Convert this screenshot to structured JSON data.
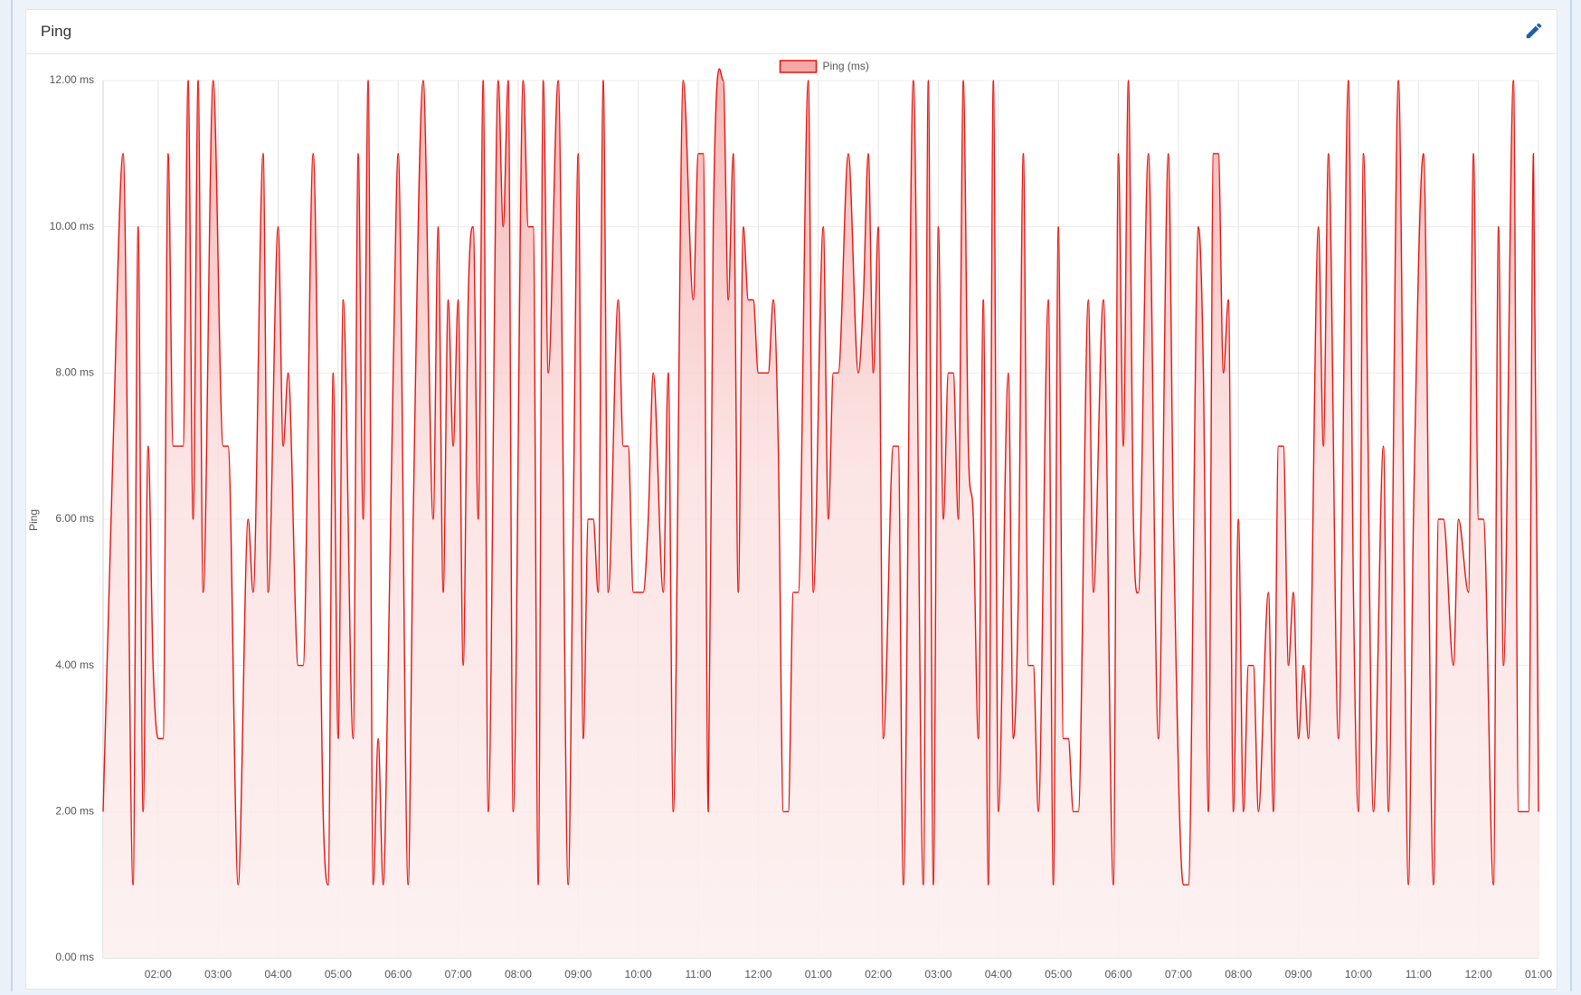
{
  "chart_data": {
    "type": "line",
    "title": "Ping",
    "ylabel": "Ping",
    "x": [
      65,
      75,
      85,
      95,
      100,
      105,
      110,
      115,
      120,
      125,
      130,
      135,
      145,
      150,
      155,
      160,
      165,
      175,
      185,
      190,
      200,
      210,
      215,
      225,
      230,
      240,
      245,
      250,
      260,
      265,
      275,
      285,
      290,
      295,
      300,
      305,
      315,
      320,
      325,
      330,
      335,
      340,
      345,
      350,
      355,
      360,
      370,
      375,
      385,
      395,
      400,
      405,
      410,
      415,
      420,
      425,
      430,
      435,
      440,
      445,
      450,
      460,
      465,
      470,
      475,
      485,
      490,
      495,
      500,
      505,
      510,
      520,
      530,
      535,
      540,
      545,
      550,
      555,
      560,
      565,
      570,
      580,
      585,
      590,
      595,
      605,
      610,
      615,
      625,
      630,
      635,
      645,
      655,
      660,
      665,
      670,
      675,
      685,
      690,
      695,
      700,
      705,
      710,
      715,
      720,
      730,
      735,
      740,
      745,
      750,
      755,
      760,
      770,
      775,
      785,
      790,
      795,
      800,
      810,
      820,
      825,
      830,
      835,
      840,
      845,
      855,
      860,
      865,
      875,
      885,
      890,
      895,
      900,
      905,
      910,
      915,
      920,
      925,
      930,
      935,
      940,
      945,
      950,
      955,
      960,
      970,
      975,
      980,
      985,
      990,
      995,
      1000,
      1010,
      1015,
      1020,
      1025,
      1030,
      1035,
      1040,
      1050,
      1055,
      1065,
      1075,
      1080,
      1085,
      1090,
      1095,
      1100,
      1110,
      1120,
      1130,
      1135,
      1145,
      1150,
      1160,
      1165,
      1170,
      1175,
      1180,
      1185,
      1190,
      1195,
      1200,
      1205,
      1210,
      1215,
      1220,
      1230,
      1235,
      1240,
      1245,
      1250,
      1255,
      1260,
      1265,
      1270,
      1280,
      1285,
      1290,
      1300,
      1310,
      1315,
      1320,
      1325,
      1335,
      1345,
      1350,
      1360,
      1370,
      1375,
      1385,
      1395,
      1400,
      1405,
      1415,
      1420,
      1430,
      1435,
      1440,
      1445,
      1455,
      1460,
      1465,
      1475,
      1480,
      1485,
      1490,
      1495,
      1500
    ],
    "series": [
      {
        "name": "Ping (ms)",
        "color": "#e3140f",
        "values": [
          2,
          7,
          11,
          1,
          10,
          2,
          7,
          4,
          3,
          3,
          11,
          7,
          7,
          12,
          6,
          12,
          5,
          12,
          7,
          7,
          1,
          6,
          5,
          11,
          5,
          10,
          7,
          8,
          4,
          4,
          11,
          2,
          1,
          8,
          3,
          9,
          3,
          11,
          6,
          12,
          1,
          3,
          1,
          4,
          8,
          11,
          1,
          6,
          12,
          6,
          10,
          5,
          9,
          7,
          9,
          4,
          9,
          10,
          6,
          12,
          2,
          12,
          10,
          12,
          2,
          12,
          10,
          10,
          1,
          12,
          8,
          12,
          1,
          6,
          11,
          3,
          6,
          6,
          5,
          12,
          5,
          9,
          7,
          7,
          5,
          5,
          6,
          8,
          5,
          8,
          2,
          12,
          9,
          11,
          11,
          2,
          10,
          12,
          9,
          11,
          5,
          10,
          9,
          9,
          8,
          8,
          9,
          7,
          2,
          2,
          5,
          5,
          12,
          5,
          10,
          6,
          8,
          8,
          11,
          8,
          9,
          11,
          8,
          10,
          3,
          7,
          7,
          1,
          12,
          1,
          12,
          1,
          10,
          6,
          8,
          8,
          6,
          12,
          7,
          6,
          3,
          9,
          1,
          12,
          2,
          8,
          3,
          5,
          11,
          4,
          4,
          2,
          9,
          1,
          10,
          3,
          3,
          2,
          2,
          9,
          5,
          9,
          1,
          11,
          7,
          12,
          6,
          5,
          11,
          3,
          11,
          6,
          1,
          1,
          10,
          8,
          2,
          11,
          11,
          8,
          9,
          2,
          6,
          2,
          4,
          4,
          2,
          5,
          2,
          7,
          7,
          4,
          5,
          3,
          4,
          3,
          10,
          7,
          11,
          3,
          12,
          5,
          2,
          11,
          2,
          7,
          2,
          12,
          1,
          6,
          11,
          1,
          6,
          6,
          4,
          6,
          5,
          11,
          6,
          6,
          1,
          10,
          4,
          12,
          2,
          2,
          2,
          11,
          2
        ]
      }
    ],
    "xlim": [
      65,
      1500
    ],
    "xticks": [
      {
        "value": 120,
        "label": "02:00"
      },
      {
        "value": 180,
        "label": "03:00"
      },
      {
        "value": 240,
        "label": "04:00"
      },
      {
        "value": 300,
        "label": "05:00"
      },
      {
        "value": 360,
        "label": "06:00"
      },
      {
        "value": 420,
        "label": "07:00"
      },
      {
        "value": 480,
        "label": "08:00"
      },
      {
        "value": 540,
        "label": "09:00"
      },
      {
        "value": 600,
        "label": "10:00"
      },
      {
        "value": 660,
        "label": "11:00"
      },
      {
        "value": 720,
        "label": "12:00"
      },
      {
        "value": 780,
        "label": "01:00"
      },
      {
        "value": 840,
        "label": "02:00"
      },
      {
        "value": 900,
        "label": "03:00"
      },
      {
        "value": 960,
        "label": "04:00"
      },
      {
        "value": 1020,
        "label": "05:00"
      },
      {
        "value": 1080,
        "label": "06:00"
      },
      {
        "value": 1140,
        "label": "07:00"
      },
      {
        "value": 1200,
        "label": "08:00"
      },
      {
        "value": 1260,
        "label": "09:00"
      },
      {
        "value": 1320,
        "label": "10:00"
      },
      {
        "value": 1380,
        "label": "11:00"
      },
      {
        "value": 1440,
        "label": "12:00"
      },
      {
        "value": 1500,
        "label": "01:00"
      }
    ],
    "ylim": [
      0,
      12
    ],
    "yticks": [
      {
        "value": 0,
        "label": "0.00 ms"
      },
      {
        "value": 2,
        "label": "2.00 ms"
      },
      {
        "value": 4,
        "label": "4.00 ms"
      },
      {
        "value": 6,
        "label": "6.00 ms"
      },
      {
        "value": 8,
        "label": "8.00 ms"
      },
      {
        "value": 10,
        "label": "10.00 ms"
      },
      {
        "value": 12,
        "label": "12.00 ms"
      }
    ],
    "grid": true,
    "legend": "top"
  }
}
